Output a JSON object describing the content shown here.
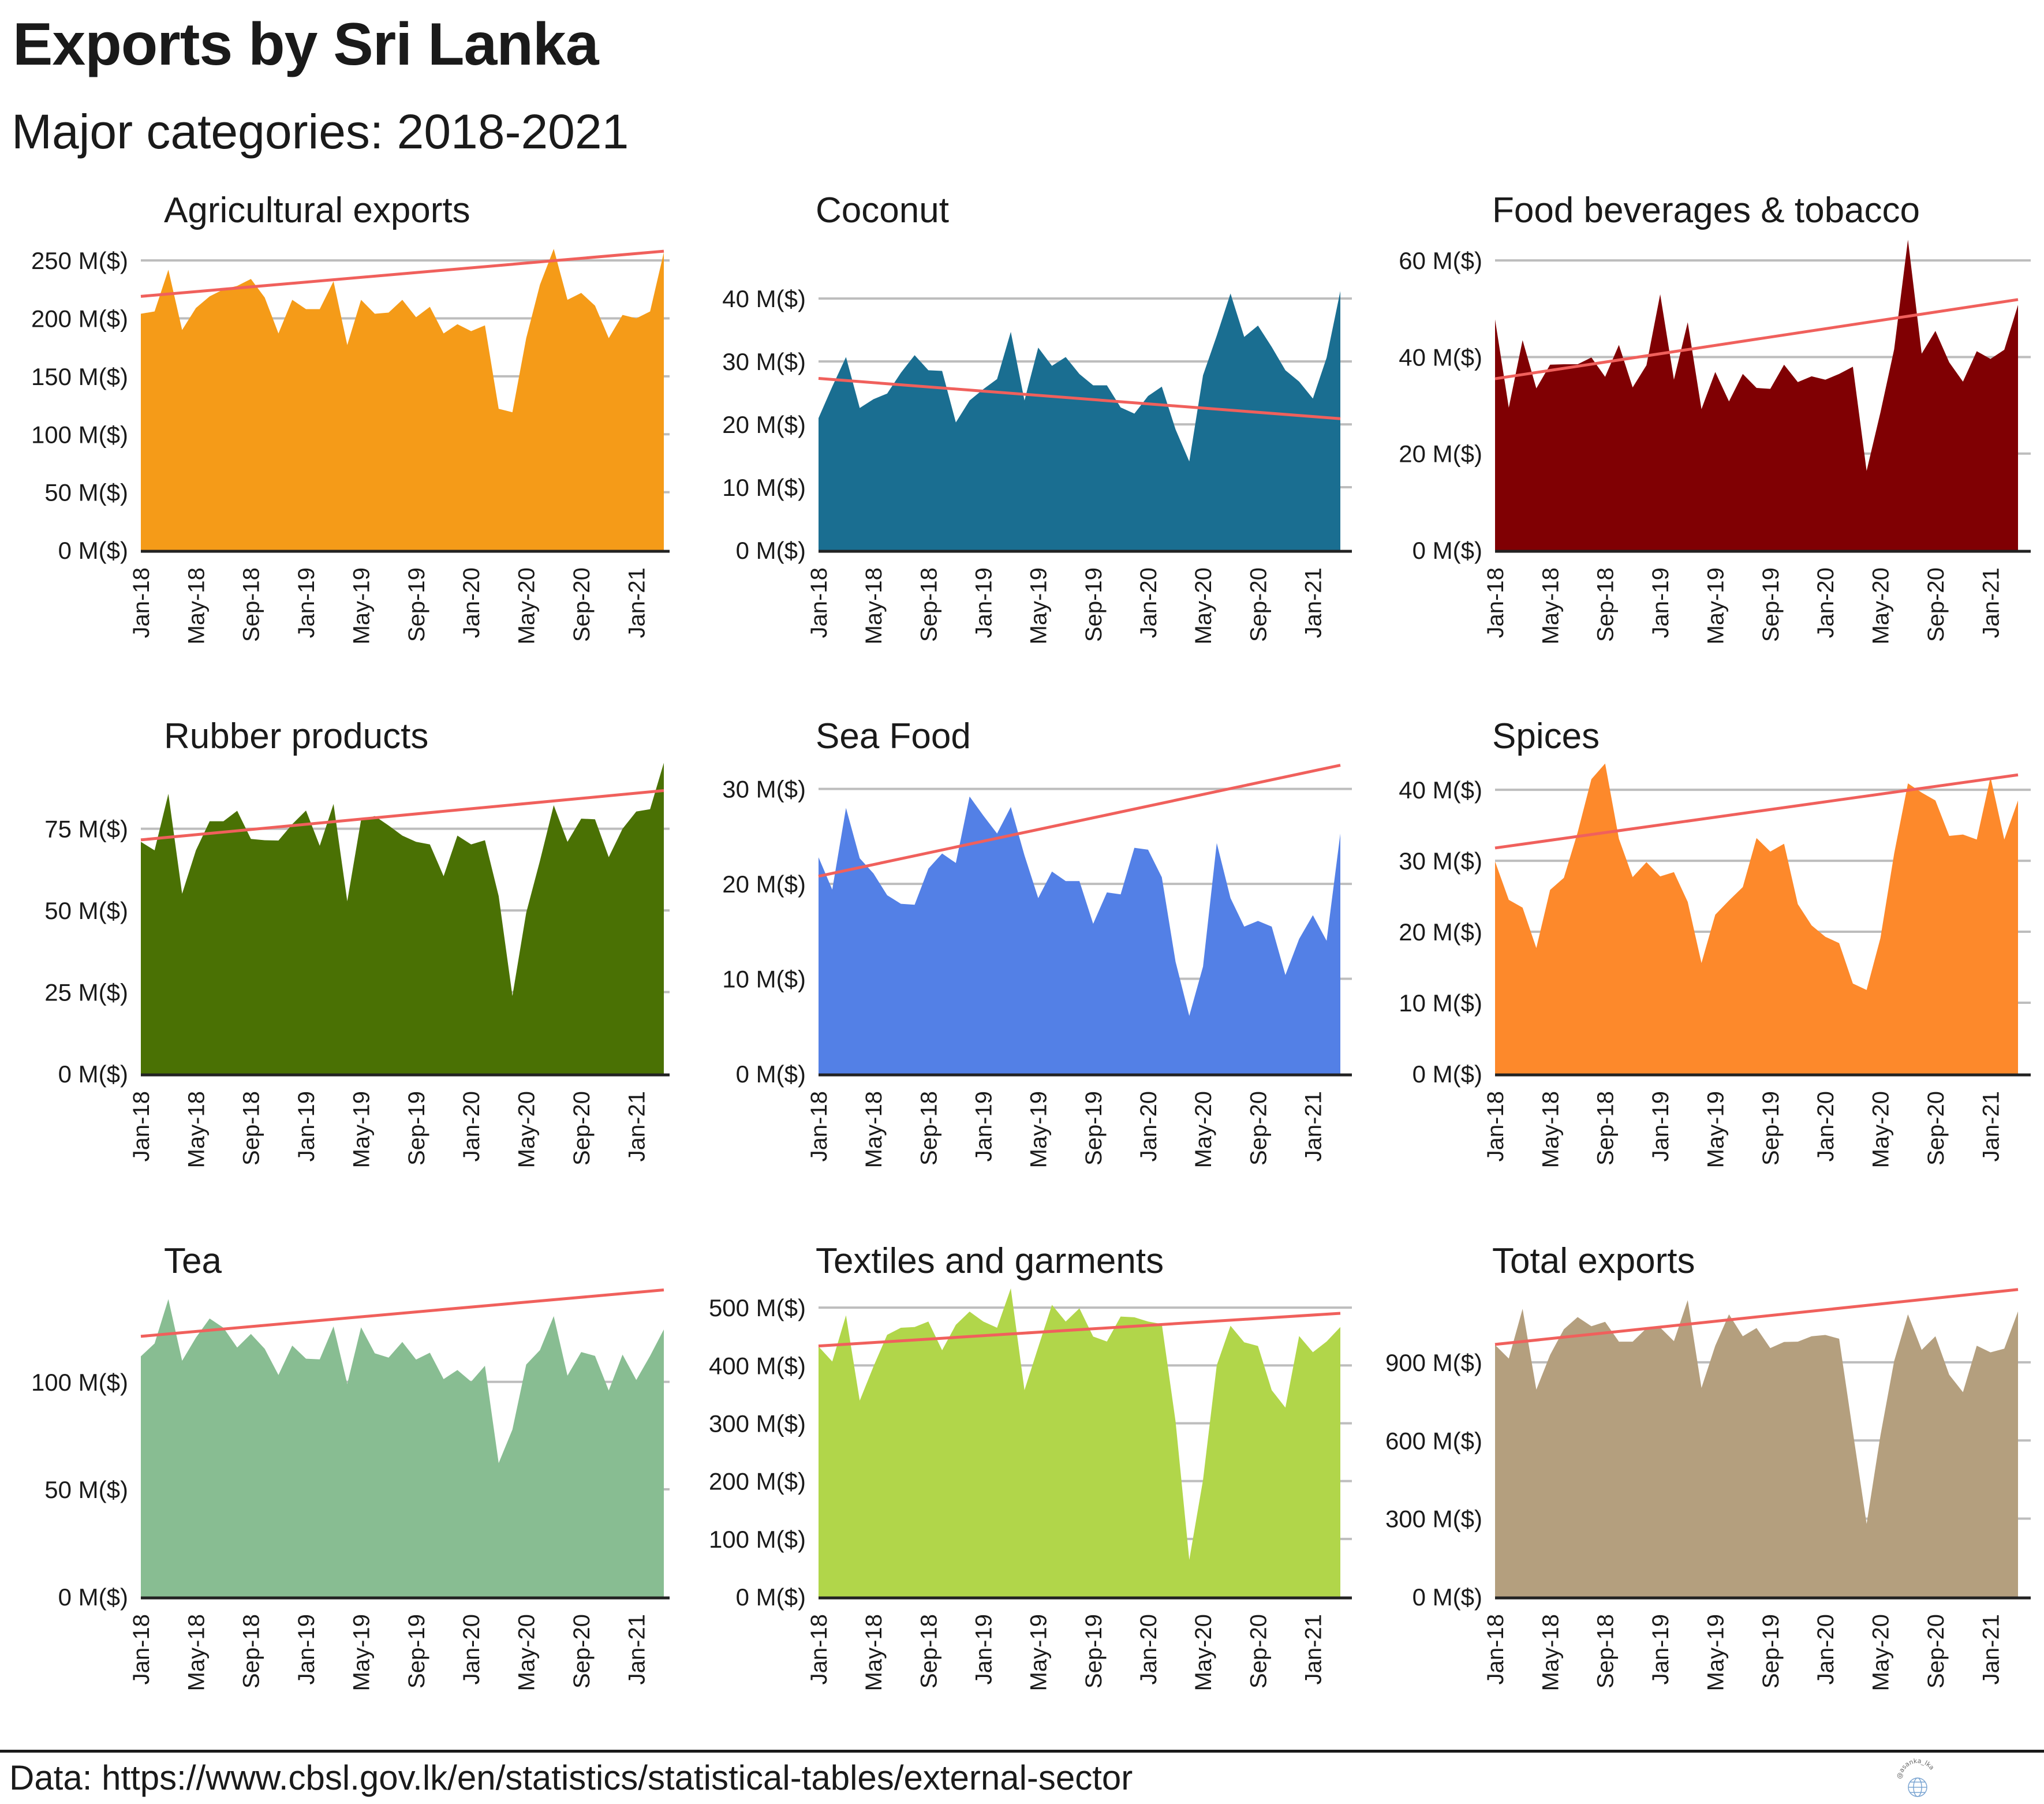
{
  "header": {
    "title": "Exports by Sri Lanka",
    "subtitle": "Major categories: 2018-2021"
  },
  "footer": {
    "source": "Data: https://www.cbsl.gov.lk/en/statistics/statistical-tables/external-sector",
    "watermark": "@asanka_lka"
  },
  "chart_data": {
    "type": "area",
    "layout": "3x3 facet grid",
    "x": [
      "Jan-18",
      "Feb-18",
      "Mar-18",
      "Apr-18",
      "May-18",
      "Jun-18",
      "Jul-18",
      "Aug-18",
      "Sep-18",
      "Oct-18",
      "Nov-18",
      "Dec-18",
      "Jan-19",
      "Feb-19",
      "Mar-19",
      "Apr-19",
      "May-19",
      "Jun-19",
      "Jul-19",
      "Aug-19",
      "Sep-19",
      "Oct-19",
      "Nov-19",
      "Dec-19",
      "Jan-20",
      "Feb-20",
      "Mar-20",
      "Apr-20",
      "May-20",
      "Jun-20",
      "Jul-20",
      "Aug-20",
      "Sep-20",
      "Oct-20",
      "Nov-20",
      "Dec-20",
      "Jan-21",
      "Feb-21",
      "Mar-21"
    ],
    "x_tick_labels": [
      "Jan-18",
      "May-18",
      "Sep-18",
      "Jan-19",
      "May-19",
      "Sep-19",
      "Jan-20",
      "May-20",
      "Sep-20",
      "Jan-21"
    ],
    "x_tick_indices": [
      0,
      4,
      8,
      12,
      16,
      20,
      24,
      28,
      32,
      36
    ],
    "unit": "M($)",
    "trend_color": "#f0605c",
    "panels": [
      {
        "title": "Agricultural exports",
        "color": "#f59b18",
        "ylim": [
          0,
          272.5
        ],
        "yticks": [
          0,
          50,
          100,
          150,
          200,
          250
        ],
        "ytick_labels": [
          "0 M($)",
          "50 M($)",
          "100 M($)",
          "150 M($)",
          "200 M($)",
          "250 M($)"
        ],
        "values": [
          204,
          206,
          242,
          190,
          209,
          219,
          225,
          228,
          234,
          218,
          187,
          216,
          208,
          208,
          232,
          177,
          216,
          204,
          205,
          216,
          201,
          210,
          187,
          195,
          189,
          194,
          122,
          119,
          183,
          229,
          260,
          216,
          222,
          211,
          183,
          203,
          200,
          206,
          257
        ],
        "trend": [
          219,
          258
        ]
      },
      {
        "title": "Coconut",
        "color": "#1a6e91",
        "ylim": [
          0,
          50.2
        ],
        "yticks": [
          0,
          10,
          20,
          30,
          40
        ],
        "ytick_labels": [
          "0 M($)",
          "10 M($)",
          "20 M($)",
          "30 M($)",
          "40 M($)"
        ],
        "values": [
          21.0,
          26.0,
          30.7,
          22.6,
          24.0,
          24.9,
          28.2,
          31.0,
          28.6,
          28.5,
          20.3,
          23.8,
          25.6,
          27.2,
          34.7,
          23.8,
          32.2,
          29.3,
          30.7,
          28.0,
          26.2,
          26.2,
          22.7,
          21.7,
          24.5,
          26.0,
          19.2,
          14.1,
          27.8,
          34.1,
          40.8,
          33.9,
          35.7,
          32.3,
          28.6,
          26.8,
          24.1,
          30.6,
          41.2
        ],
        "trend": [
          27.3,
          20.9
        ]
      },
      {
        "title": "Food beverages & tobacco",
        "color": "#800003",
        "ylim": [
          0,
          65.4
        ],
        "yticks": [
          0,
          20,
          40,
          60
        ],
        "ytick_labels": [
          "0 M($)",
          "20 M($)",
          "40 M($)",
          "60 M($)"
        ],
        "values": [
          47.8,
          29.5,
          43.5,
          33.5,
          38.4,
          38.5,
          38.5,
          39.9,
          35.9,
          42.5,
          33.7,
          38.3,
          53.0,
          35.3,
          47.2,
          29.2,
          36.9,
          30.8,
          36.5,
          33.6,
          33.4,
          38.4,
          34.8,
          36.0,
          35.3,
          36.5,
          38.0,
          16.4,
          28.5,
          41.6,
          64.3,
          40.7,
          45.4,
          38.9,
          34.9,
          41.2,
          39.6,
          41.5,
          50.8
        ],
        "trend": [
          35.5,
          51.9
        ]
      },
      {
        "title": "Rubber products",
        "color": "#4a7104",
        "ylim": [
          0,
          96.5
        ],
        "yticks": [
          0,
          25,
          50,
          75
        ],
        "ytick_labels": [
          "0 M($)",
          "25 M($)",
          "50 M($)",
          "75 M($)"
        ],
        "values": [
          71.0,
          68.4,
          85.7,
          55.1,
          68.4,
          77.3,
          77.3,
          80.5,
          71.9,
          71.5,
          71.4,
          76.4,
          80.6,
          69.8,
          82.6,
          52.8,
          77.7,
          78.9,
          76.0,
          72.9,
          71.0,
          70.2,
          60.5,
          72.9,
          70.2,
          71.5,
          54.4,
          23.8,
          49.3,
          65.2,
          82.2,
          71.0,
          78.1,
          77.9,
          66.3,
          75.0,
          80.3,
          81.0,
          95.2
        ],
        "trend": [
          71.6,
          86.7
        ]
      },
      {
        "title": "Sea Food",
        "color": "#5380e6",
        "ylim": [
          0,
          33.2
        ],
        "yticks": [
          0,
          10,
          20,
          30
        ],
        "ytick_labels": [
          "0 M($)",
          "10 M($)",
          "20 M($)",
          "30 M($)"
        ],
        "values": [
          22.8,
          19.4,
          28.0,
          22.7,
          21.1,
          18.8,
          17.9,
          17.8,
          21.6,
          23.2,
          22.2,
          29.2,
          27.2,
          25.3,
          28.1,
          23.0,
          18.5,
          21.3,
          20.3,
          20.3,
          15.8,
          19.1,
          18.9,
          23.8,
          23.6,
          20.7,
          11.8,
          6.1,
          11.3,
          24.3,
          18.5,
          15.5,
          16.1,
          15.5,
          10.4,
          14.2,
          16.7,
          14.0,
          25.3
        ],
        "trend": [
          20.8,
          32.5
        ]
      },
      {
        "title": "Spices",
        "color": "#fd892b",
        "ylim": [
          0,
          44.4
        ],
        "yticks": [
          0,
          10,
          20,
          30,
          40
        ],
        "ytick_labels": [
          "0 M($)",
          "10 M($)",
          "20 M($)",
          "30 M($)",
          "40 M($)"
        ],
        "values": [
          29.9,
          24.5,
          23.4,
          17.7,
          25.9,
          27.6,
          34.0,
          41.5,
          43.7,
          33.1,
          27.7,
          29.8,
          27.8,
          28.4,
          24.2,
          15.6,
          22.4,
          24.4,
          26.3,
          33.2,
          31.3,
          32.4,
          23.9,
          20.9,
          19.3,
          18.4,
          12.7,
          11.8,
          19.1,
          31.0,
          40.9,
          39.6,
          38.5,
          33.5,
          33.7,
          33.0,
          41.8,
          33.0,
          38.5
        ],
        "trend": [
          31.8,
          42.1
        ]
      },
      {
        "title": "Tea",
        "color": "#88bd92",
        "ylim": [
          0,
          146.7
        ],
        "yticks": [
          0,
          50,
          100
        ],
        "ytick_labels": [
          "0 M($)",
          "50 M($)",
          "100 M($)"
        ],
        "values": [
          111.9,
          117.9,
          138.5,
          109.8,
          120.6,
          129.5,
          125.2,
          116.0,
          122.3,
          115.4,
          103.2,
          116.9,
          110.8,
          110.5,
          125.8,
          99.0,
          125.4,
          113.3,
          111.3,
          118.6,
          110.4,
          113.6,
          101.3,
          105.5,
          100.1,
          107.5,
          62.2,
          77.8,
          108.1,
          114.8,
          130.6,
          102.9,
          113.9,
          112.1,
          96.0,
          112.7,
          100.9,
          112.1,
          124.4
        ],
        "trend": [
          121.2,
          142.8
        ]
      },
      {
        "title": "Textiles and garments",
        "color": "#b1d64a",
        "ylim": [
          0,
          545
        ],
        "yticks": [
          0,
          100,
          200,
          300,
          400,
          500
        ],
        "ytick_labels": [
          "0 M($)",
          "100 M($)",
          "200 M($)",
          "300 M($)",
          "400 M($)",
          "500 M($)"
        ],
        "values": [
          432.7,
          406.8,
          486.6,
          339.1,
          398.2,
          453.0,
          465.1,
          466.4,
          475.8,
          426.2,
          470.2,
          493.1,
          475.8,
          465.1,
          533.2,
          357.2,
          431.4,
          504.7,
          475.8,
          498.7,
          450.0,
          441.3,
          484.5,
          483.2,
          475.8,
          471.5,
          303.3,
          63.8,
          201.9,
          400.3,
          468.5,
          440.0,
          433.6,
          357.2,
          327.0,
          450.8,
          422.8,
          441.3,
          466.4
        ],
        "trend": [
          433.6,
          490.1
        ]
      },
      {
        "title": "Total exports",
        "color": "#b49f7e",
        "ylim": [
          0,
          1210
        ],
        "yticks": [
          0,
          300,
          600,
          900
        ],
        "ytick_labels": [
          "0 M($)",
          "300 M($)",
          "600 M($)",
          "900 M($)"
        ],
        "values": [
          966.8,
          914.3,
          1105.2,
          795.0,
          928.6,
          1026.9,
          1073.7,
          1038.4,
          1055.6,
          979.2,
          979.2,
          1030.7,
          1033.6,
          981.1,
          1138.6,
          801.7,
          963.9,
          1084.2,
          1000.2,
          1031.7,
          954.4,
          978.3,
          979.2,
          1000.2,
          1005.0,
          990.6,
          632.8,
          279.6,
          618.5,
          904.8,
          1084.2,
          947.7,
          1000.2,
          852.3,
          785.5,
          963.9,
          938.2,
          952.5,
          1095.6
        ],
        "trend": [
          968.7,
          1179.6
        ]
      }
    ]
  }
}
